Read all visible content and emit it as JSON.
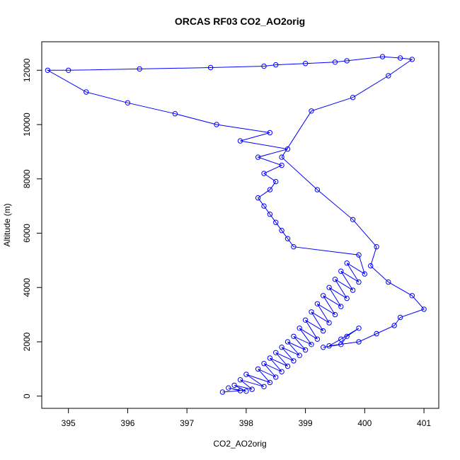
{
  "chart_data": {
    "type": "line",
    "title": "ORCAS RF03 CO2_AO2orig",
    "xlabel": "CO2_AO2orig",
    "ylabel": "Altitude (m)",
    "xlim": [
      394.55,
      401.25
    ],
    "ylim": [
      -450,
      13050
    ],
    "xticks": [
      395,
      396,
      397,
      398,
      399,
      400,
      401
    ],
    "yticks": [
      0,
      2000,
      4000,
      6000,
      8000,
      10000,
      12000
    ],
    "marker": "open-circle",
    "grid": false,
    "legend": "none",
    "series": [
      {
        "color": "#0000ff",
        "x": [
          397.6,
          397.9,
          397.7,
          398.0,
          397.8,
          398.1,
          397.9,
          398.3,
          398.0,
          398.4,
          398.2,
          398.5,
          398.3,
          398.6,
          398.4,
          398.7,
          398.5,
          398.8,
          398.6,
          398.9,
          398.7,
          399.0,
          398.8,
          399.1,
          398.9,
          399.2,
          399.0,
          399.3,
          399.1,
          399.4,
          399.2,
          399.5,
          399.3,
          399.6,
          399.4,
          399.7,
          399.5,
          399.8,
          399.6,
          399.9,
          399.7,
          400.0,
          399.9,
          398.8,
          398.7,
          398.6,
          398.5,
          398.4,
          398.3,
          398.2,
          398.4,
          398.5,
          398.3,
          398.6,
          398.2,
          398.7,
          397.9,
          398.4,
          397.5,
          396.8,
          396.0,
          395.3,
          394.65,
          395.0,
          396.2,
          397.4,
          398.3,
          398.5,
          399.0,
          399.5,
          399.7,
          400.3,
          400.6,
          400.8,
          400.4,
          399.8,
          399.1,
          398.6,
          399.2,
          399.8,
          400.2,
          400.1,
          400.4,
          400.8,
          401.0,
          400.6,
          400.5,
          400.2,
          399.9,
          399.4,
          399.6,
          399.9,
          399.7,
          399.6,
          399.3
        ],
        "y": [
          150,
          200,
          300,
          180,
          400,
          250,
          600,
          350,
          800,
          500,
          1000,
          700,
          1200,
          900,
          1400,
          1100,
          1600,
          1300,
          1800,
          1500,
          2000,
          1700,
          2200,
          1900,
          2500,
          2100,
          2800,
          2400,
          3100,
          2700,
          3400,
          3000,
          3700,
          3300,
          4000,
          3600,
          4300,
          3900,
          4600,
          4200,
          4900,
          4500,
          5200,
          5500,
          5800,
          6100,
          6400,
          6700,
          7000,
          7300,
          7600,
          7900,
          8200,
          8500,
          8800,
          9100,
          9400,
          9700,
          10000,
          10400,
          10800,
          11200,
          12000,
          12000,
          12050,
          12100,
          12150,
          12200,
          12250,
          12300,
          12350,
          12500,
          12450,
          12400,
          11800,
          11000,
          10500,
          8800,
          7600,
          6500,
          5500,
          4800,
          4200,
          3700,
          3200,
          2900,
          2600,
          2300,
          2000,
          1850,
          2100,
          2500,
          2200,
          1900,
          1800
        ]
      }
    ]
  }
}
